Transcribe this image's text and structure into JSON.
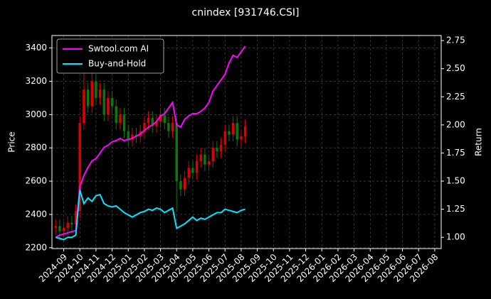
{
  "chart_data": {
    "type": "candlestick",
    "title": "cnindex [931746.CSI]",
    "y_label": "Price",
    "y2_label": "Return",
    "x": [
      -0.5,
      -0.25,
      0,
      0.25,
      0.5,
      0.75,
      1,
      1.25,
      1.5,
      1.75,
      2,
      2.25,
      2.5,
      2.75,
      3,
      3.25,
      3.5,
      3.75,
      4,
      4.25,
      4.5,
      4.75,
      5,
      5.25,
      5.5,
      5.75,
      6,
      6.25,
      6.5,
      6.75,
      7,
      7.25,
      7.5,
      7.75,
      8,
      8.25,
      8.5,
      8.75,
      9,
      9.25,
      9.5,
      9.75,
      10,
      10.25,
      10.5,
      10.75,
      11,
      11.25
    ],
    "open": [
      2320,
      2330,
      2300,
      2320,
      2350,
      2340,
      2420,
      2950,
      3150,
      3050,
      3200,
      3100,
      3150,
      3000,
      3100,
      3050,
      2950,
      3000,
      2900,
      2850,
      2880,
      2870,
      2900,
      2950,
      2980,
      2930,
      2960,
      3000,
      2950,
      2900,
      2950,
      2600,
      2550,
      2620,
      2680,
      2650,
      2720,
      2760,
      2700,
      2720,
      2800,
      2780,
      2820,
      2900,
      2880,
      2950,
      2850,
      2870
    ],
    "high": [
      2370,
      2370,
      2360,
      2390,
      2390,
      2460,
      2990,
      3300,
      3190,
      3330,
      3240,
      3190,
      3190,
      3140,
      3140,
      3090,
      3040,
      3040,
      2940,
      2920,
      2920,
      2940,
      2990,
      3020,
      3020,
      3000,
      3040,
      3040,
      2990,
      2990,
      2990,
      2640,
      2660,
      2720,
      2720,
      2760,
      2800,
      2800,
      2760,
      2840,
      2840,
      2860,
      2940,
      2940,
      2990,
      2990,
      2910,
      2970
    ],
    "low": [
      2280,
      2260,
      2260,
      2280,
      2300,
      2300,
      2380,
      2910,
      3010,
      3010,
      3060,
      3060,
      2960,
      2960,
      3010,
      2910,
      2910,
      2860,
      2810,
      2810,
      2830,
      2830,
      2860,
      2910,
      2890,
      2890,
      2920,
      2910,
      2860,
      2860,
      2420,
      2510,
      2510,
      2580,
      2610,
      2610,
      2680,
      2660,
      2660,
      2680,
      2740,
      2740,
      2780,
      2840,
      2840,
      2810,
      2810,
      2830
    ],
    "close": [
      2330,
      2300,
      2320,
      2350,
      2340,
      2420,
      2950,
      3150,
      3050,
      3200,
      3100,
      3150,
      3000,
      3100,
      3050,
      2950,
      3000,
      2900,
      2850,
      2880,
      2870,
      2900,
      2950,
      2980,
      2930,
      2960,
      3000,
      2950,
      2900,
      2950,
      2600,
      2550,
      2620,
      2680,
      2650,
      2720,
      2760,
      2700,
      2720,
      2800,
      2780,
      2820,
      2900,
      2880,
      2950,
      2850,
      2870,
      2930
    ],
    "up_color": "#e00000",
    "down_color": "#0a7a0a",
    "series": [
      {
        "name": "Swtool.com AI",
        "color": "#ff00ff",
        "axis": "y2",
        "values": [
          1.0,
          1.02,
          1.03,
          1.04,
          1.05,
          1.06,
          1.45,
          1.55,
          1.62,
          1.68,
          1.7,
          1.75,
          1.8,
          1.82,
          1.85,
          1.86,
          1.88,
          1.86,
          1.87,
          1.88,
          1.9,
          1.92,
          1.95,
          1.98,
          2.0,
          2.03,
          2.08,
          2.1,
          2.15,
          2.2,
          2.0,
          1.98,
          2.05,
          2.08,
          2.1,
          2.1,
          2.12,
          2.15,
          2.2,
          2.3,
          2.35,
          2.4,
          2.45,
          2.55,
          2.62,
          2.6,
          2.65,
          2.7
        ]
      },
      {
        "name": "Buy-and-Hold",
        "color": "#00e5ff",
        "axis": "y2",
        "values": [
          1.0,
          0.99,
          0.98,
          1.0,
          1.0,
          1.02,
          1.42,
          1.3,
          1.35,
          1.32,
          1.37,
          1.38,
          1.3,
          1.28,
          1.27,
          1.28,
          1.25,
          1.22,
          1.2,
          1.18,
          1.2,
          1.22,
          1.23,
          1.25,
          1.24,
          1.26,
          1.25,
          1.22,
          1.24,
          1.26,
          1.08,
          1.1,
          1.12,
          1.15,
          1.18,
          1.15,
          1.17,
          1.16,
          1.18,
          1.2,
          1.22,
          1.22,
          1.25,
          1.24,
          1.23,
          1.22,
          1.24,
          1.25
        ]
      }
    ],
    "xlim": [
      -0.73,
      23.4
    ],
    "xticks": [
      {
        "value": 0,
        "label": "2024-09"
      },
      {
        "value": 1,
        "label": "2024-10"
      },
      {
        "value": 2,
        "label": "2024-11"
      },
      {
        "value": 3,
        "label": "2024-12"
      },
      {
        "value": 4,
        "label": "2025-01"
      },
      {
        "value": 5,
        "label": "2025-02"
      },
      {
        "value": 6,
        "label": "2025-03"
      },
      {
        "value": 7,
        "label": "2025-04"
      },
      {
        "value": 8,
        "label": "2025-05"
      },
      {
        "value": 9,
        "label": "2025-06"
      },
      {
        "value": 10,
        "label": "2025-07"
      },
      {
        "value": 11,
        "label": "2025-08"
      },
      {
        "value": 12,
        "label": "2025-09"
      },
      {
        "value": 13,
        "label": "2025-10"
      },
      {
        "value": 14,
        "label": "2025-11"
      },
      {
        "value": 15,
        "label": "2025-12"
      },
      {
        "value": 16,
        "label": "2026-01"
      },
      {
        "value": 17,
        "label": "2026-02"
      },
      {
        "value": 18,
        "label": "2026-03"
      },
      {
        "value": 19,
        "label": "2026-04"
      },
      {
        "value": 20,
        "label": "2026-05"
      },
      {
        "value": 21,
        "label": "2026-06"
      },
      {
        "value": 22,
        "label": "2026-07"
      },
      {
        "value": 23,
        "label": "2026-08"
      }
    ],
    "ylim": [
      2195,
      3475
    ],
    "yticks": [
      2200,
      2400,
      2600,
      2800,
      3000,
      3200,
      3400
    ],
    "y2lim": [
      0.9,
      2.795
    ],
    "y2ticks": [
      {
        "value": 1,
        "label": "1.00"
      },
      1.25,
      {
        "value": 1.5,
        "label": "1.50"
      },
      1.75,
      {
        "value": 2,
        "label": "2.00"
      },
      2.25,
      {
        "value": 2.5,
        "label": "2.50"
      },
      2.75
    ],
    "grid": true,
    "legend": "upper left"
  }
}
